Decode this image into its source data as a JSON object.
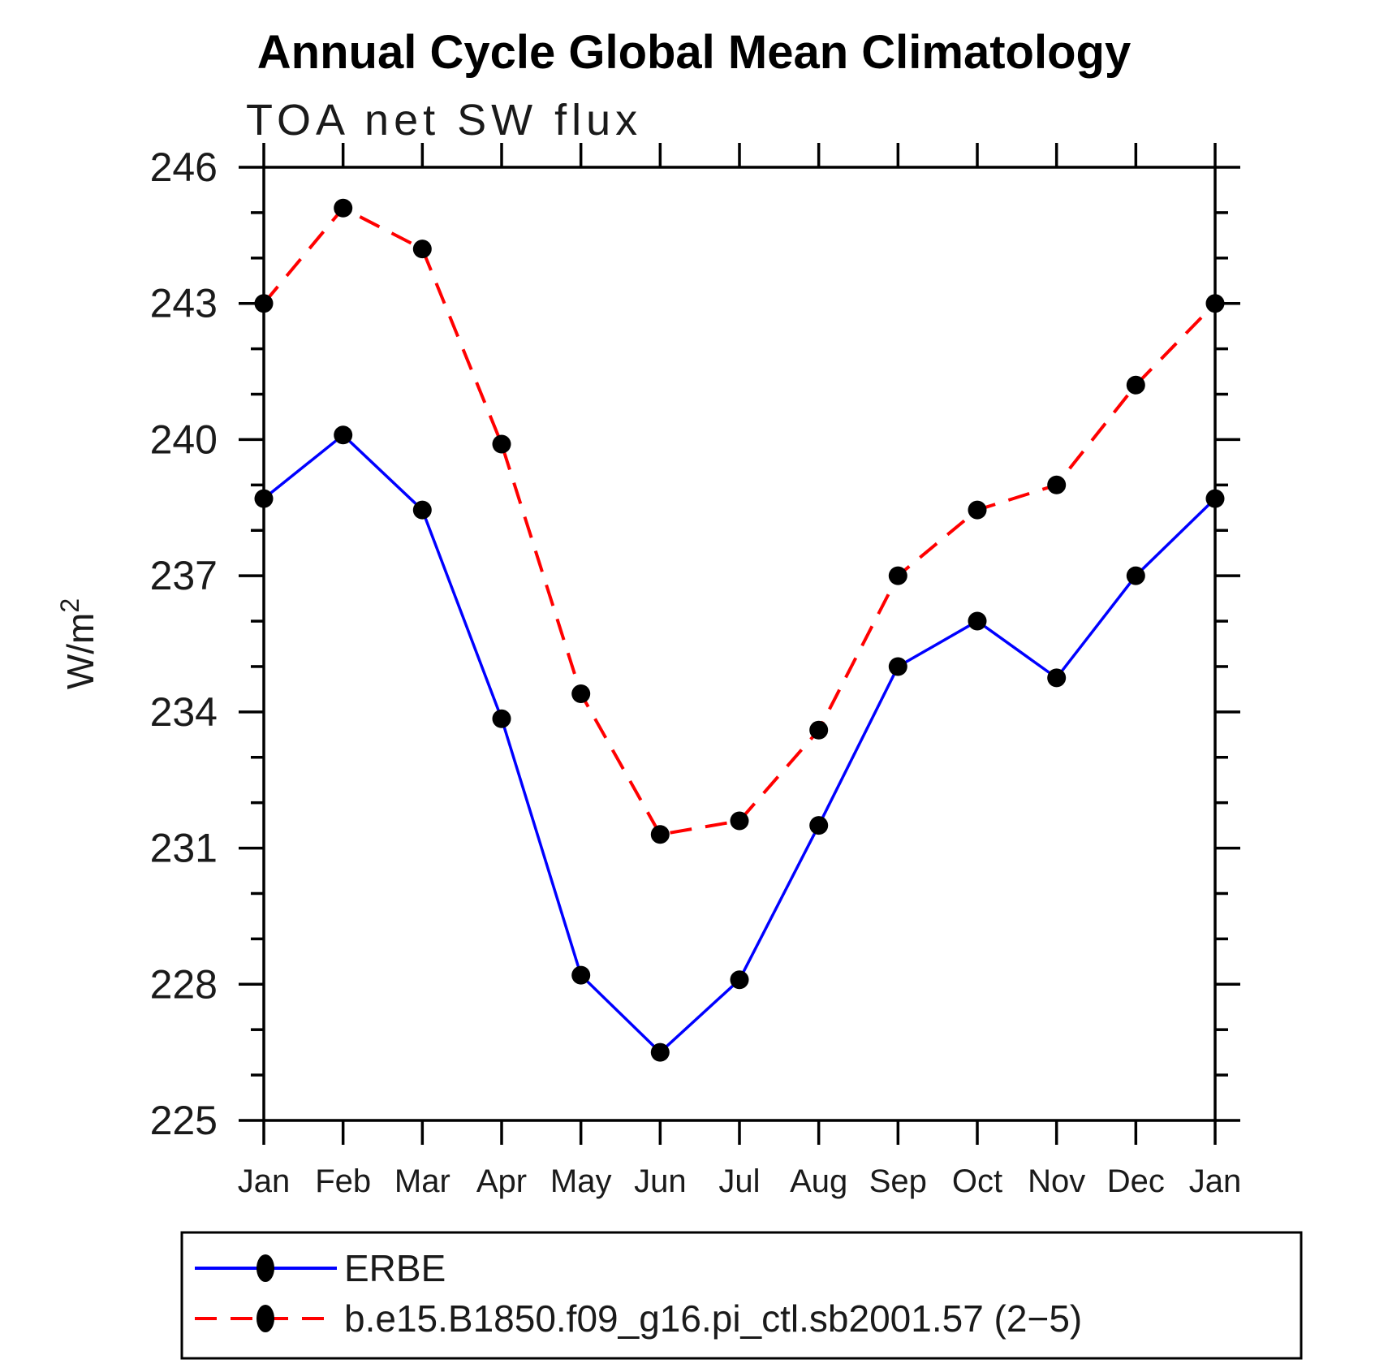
{
  "chart": {
    "title": "Annual Cycle Global Mean Climatology",
    "subtitle": "TOA net SW flux",
    "ylabel_base": "W/m",
    "ylabel_sup": "2"
  },
  "chart_data": {
    "type": "line",
    "title": "Annual Cycle Global Mean Climatology",
    "subtitle": "TOA net SW flux",
    "xlabel": "",
    "ylabel": "W/m^2",
    "x_categories": [
      "Jan",
      "Feb",
      "Mar",
      "Apr",
      "May",
      "Jun",
      "Jul",
      "Aug",
      "Sep",
      "Oct",
      "Nov",
      "Dec",
      "Jan"
    ],
    "ylim": [
      225,
      246
    ],
    "y_major_step": 3,
    "y_minor_step": 1,
    "y_tick_labels": [
      "225",
      "228",
      "231",
      "234",
      "237",
      "240",
      "243",
      "246"
    ],
    "grid": "off",
    "legend_position": "bottom-left-box",
    "marker_color": "#000000",
    "series": [
      {
        "name": "ERBE",
        "color": "#0000ff",
        "line_style": "solid",
        "marker": "filled-circle",
        "values": [
          238.7,
          240.1,
          238.45,
          233.85,
          228.2,
          226.5,
          228.1,
          231.5,
          235.0,
          236.0,
          234.75,
          237.0,
          238.7
        ]
      },
      {
        "name": "b.e15.B1850.f09_g16.pi_ctl.sb2001.57 (2−5)",
        "color": "#ff0000",
        "line_style": "dashed",
        "marker": "filled-circle",
        "values": [
          243.0,
          245.1,
          244.2,
          239.9,
          234.4,
          231.3,
          231.6,
          233.6,
          237.0,
          238.45,
          239.0,
          241.2,
          243.0
        ]
      }
    ]
  },
  "legend": {
    "entries": [
      {
        "label": "ERBE"
      },
      {
        "label": "b.e15.B1850.f09_g16.pi_ctl.sb2001.57 (2−5)"
      }
    ]
  }
}
